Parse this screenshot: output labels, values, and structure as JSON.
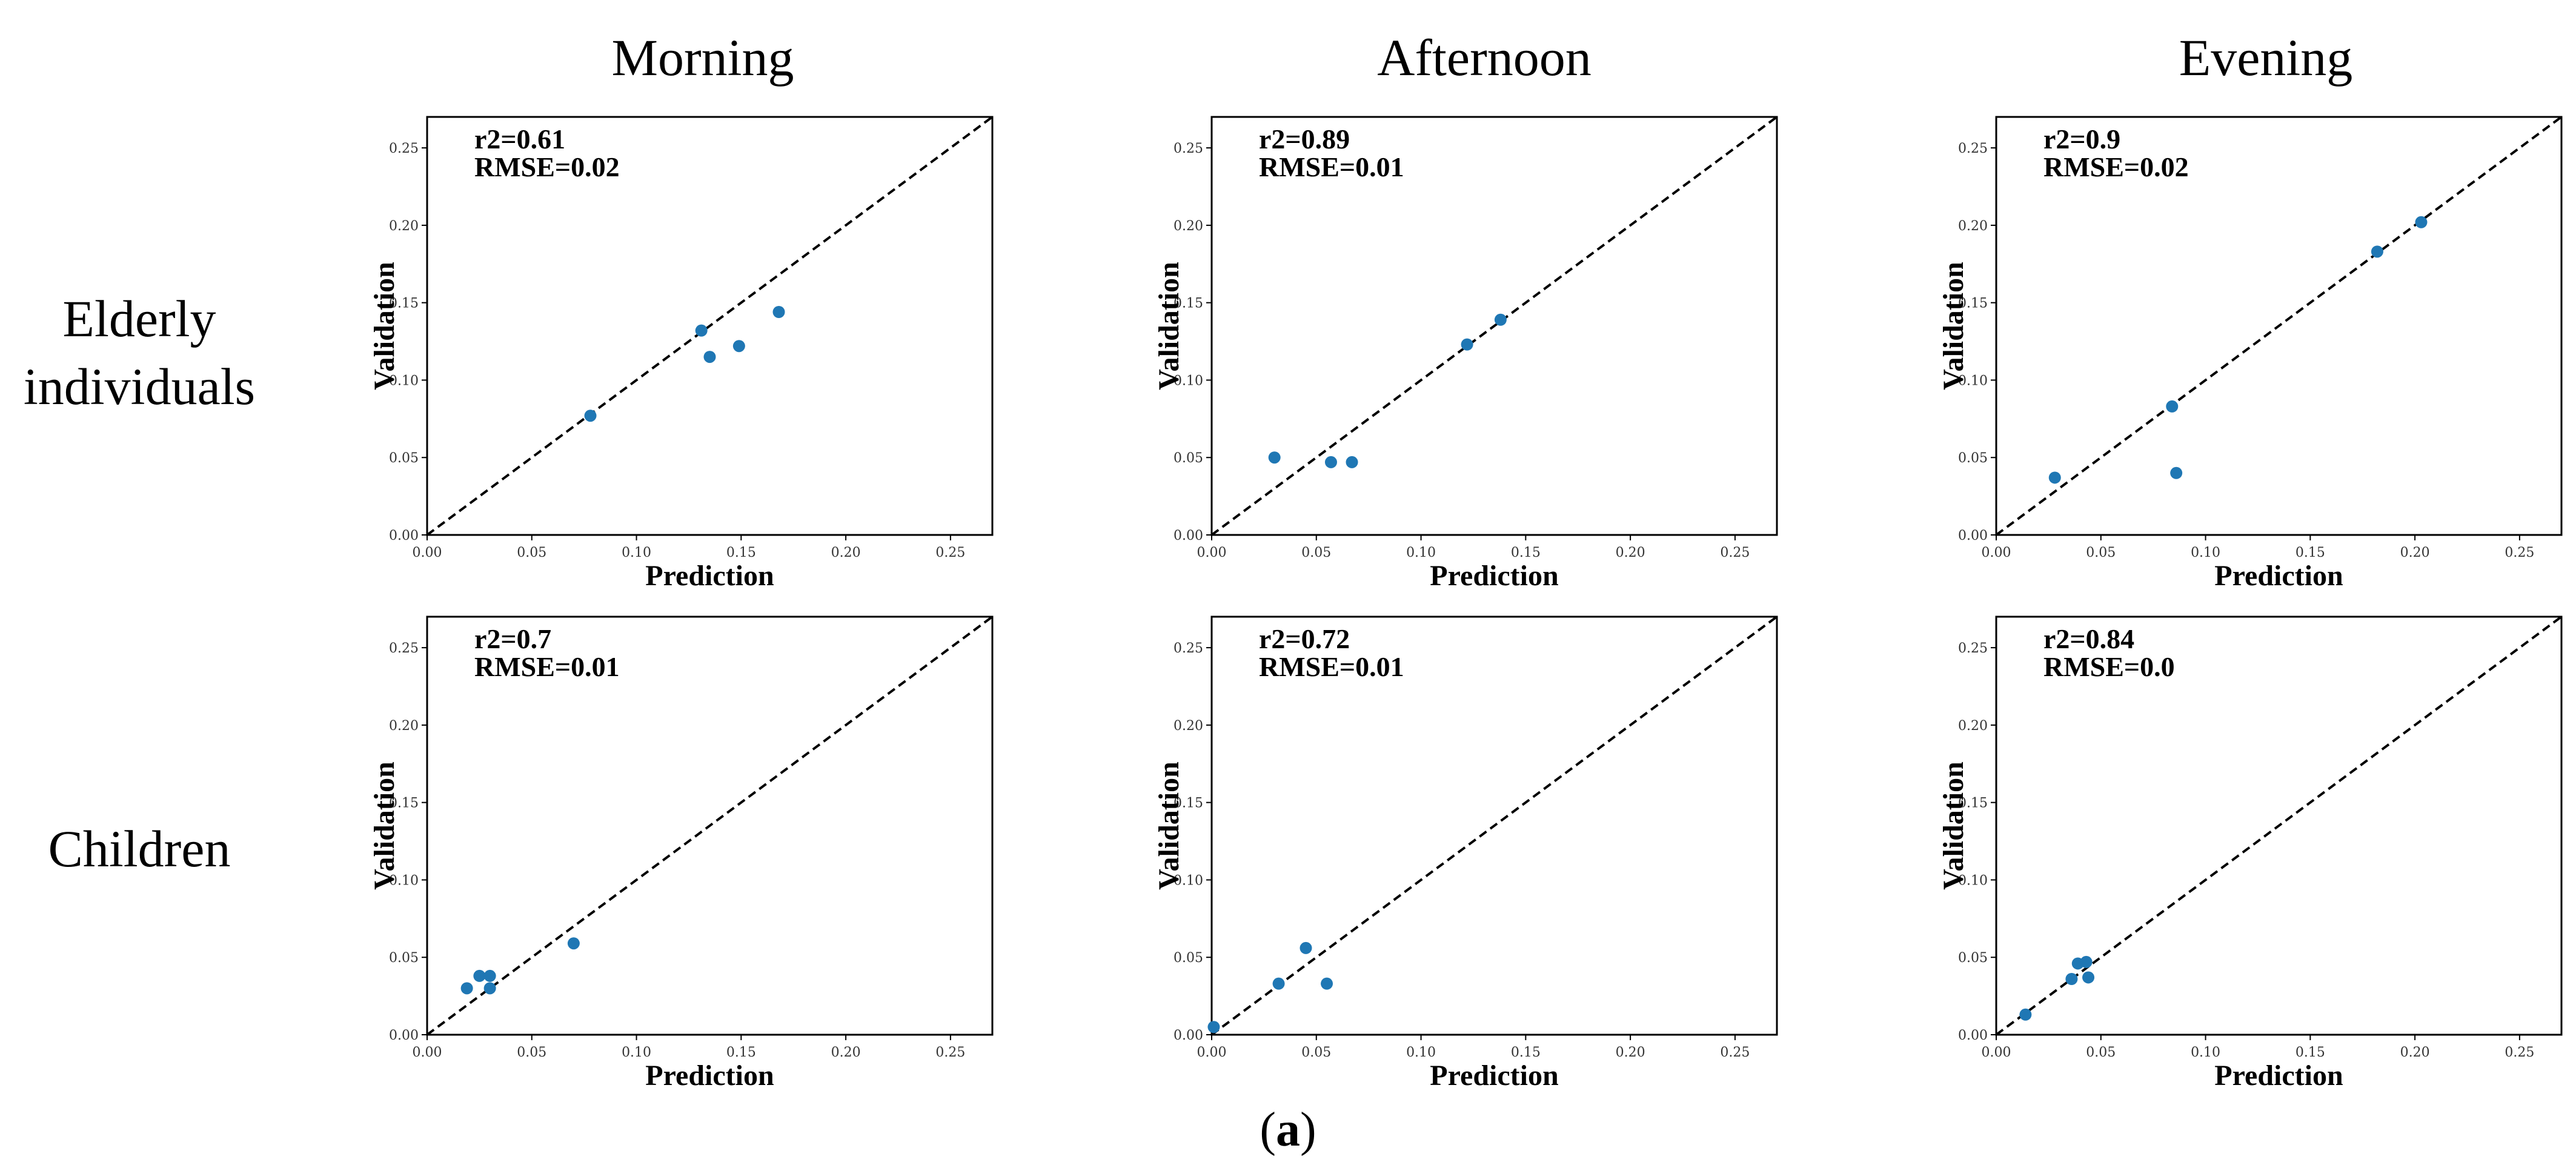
{
  "column_titles": [
    "Morning",
    "Afternoon",
    "Evening"
  ],
  "row_labels": [
    [
      "Elderly",
      "individuals"
    ],
    [
      "Children"
    ]
  ],
  "caption": {
    "open": "(",
    "letter": "a",
    "close": ")"
  },
  "colors": {
    "point": "#1f77b4",
    "line": "#000000",
    "axis": "#000000"
  },
  "chart_data": [
    {
      "type": "scatter",
      "row": "Elderly individuals",
      "column": "Morning",
      "annotation": [
        "r2=0.61",
        "RMSE=0.02"
      ],
      "xlabel": "Prediction",
      "ylabel": "Validation",
      "xlim": [
        0,
        0.27
      ],
      "ylim": [
        0,
        0.27
      ],
      "xticks": [
        0.0,
        0.05,
        0.1,
        0.15,
        0.2,
        0.25
      ],
      "yticks": [
        0.0,
        0.05,
        0.1,
        0.15,
        0.2,
        0.25
      ],
      "xtick_labels": [
        "0.00",
        "0.05",
        "0.10",
        "0.15",
        "0.20",
        "0.25"
      ],
      "ytick_labels": [
        "0.00",
        "0.05",
        "0.10",
        "0.15",
        "0.20",
        "0.25"
      ],
      "points": [
        [
          0.078,
          0.077
        ],
        [
          0.131,
          0.132
        ],
        [
          0.135,
          0.115
        ],
        [
          0.149,
          0.122
        ],
        [
          0.168,
          0.144
        ]
      ]
    },
    {
      "type": "scatter",
      "row": "Elderly individuals",
      "column": "Afternoon",
      "annotation": [
        "r2=0.89",
        "RMSE=0.01"
      ],
      "xlabel": "Prediction",
      "ylabel": "Validation",
      "xlim": [
        0,
        0.27
      ],
      "ylim": [
        0,
        0.27
      ],
      "xticks": [
        0.0,
        0.05,
        0.1,
        0.15,
        0.2,
        0.25
      ],
      "yticks": [
        0.0,
        0.05,
        0.1,
        0.15,
        0.2,
        0.25
      ],
      "xtick_labels": [
        "0.00",
        "0.05",
        "0.10",
        "0.15",
        "0.20",
        "0.25"
      ],
      "ytick_labels": [
        "0.00",
        "0.05",
        "0.10",
        "0.15",
        "0.20",
        "0.25"
      ],
      "points": [
        [
          0.03,
          0.05
        ],
        [
          0.057,
          0.047
        ],
        [
          0.067,
          0.047
        ],
        [
          0.122,
          0.123
        ],
        [
          0.138,
          0.139
        ]
      ]
    },
    {
      "type": "scatter",
      "row": "Elderly individuals",
      "column": "Evening",
      "annotation": [
        "r2=0.9",
        "RMSE=0.02"
      ],
      "xlabel": "Prediction",
      "ylabel": "Validation",
      "xlim": [
        0,
        0.27
      ],
      "ylim": [
        0,
        0.27
      ],
      "xticks": [
        0.0,
        0.05,
        0.1,
        0.15,
        0.2,
        0.25
      ],
      "yticks": [
        0.0,
        0.05,
        0.1,
        0.15,
        0.2,
        0.25
      ],
      "xtick_labels": [
        "0.00",
        "0.05",
        "0.10",
        "0.15",
        "0.20",
        "0.25"
      ],
      "ytick_labels": [
        "0.00",
        "0.05",
        "0.10",
        "0.15",
        "0.20",
        "0.25"
      ],
      "points": [
        [
          0.028,
          0.037
        ],
        [
          0.084,
          0.083
        ],
        [
          0.086,
          0.04
        ],
        [
          0.182,
          0.183
        ],
        [
          0.203,
          0.202
        ]
      ]
    },
    {
      "type": "scatter",
      "row": "Children",
      "column": "Morning",
      "annotation": [
        "r2=0.7",
        "RMSE=0.01"
      ],
      "xlabel": "Prediction",
      "ylabel": "Validation",
      "xlim": [
        0,
        0.27
      ],
      "ylim": [
        0,
        0.27
      ],
      "xticks": [
        0.0,
        0.05,
        0.1,
        0.15,
        0.2,
        0.25
      ],
      "yticks": [
        0.0,
        0.05,
        0.1,
        0.15,
        0.2,
        0.25
      ],
      "xtick_labels": [
        "0.00",
        "0.05",
        "0.10",
        "0.15",
        "0.20",
        "0.25"
      ],
      "ytick_labels": [
        "0.00",
        "0.05",
        "0.10",
        "0.15",
        "0.20",
        "0.25"
      ],
      "points": [
        [
          0.019,
          0.03
        ],
        [
          0.025,
          0.038
        ],
        [
          0.03,
          0.038
        ],
        [
          0.03,
          0.03
        ],
        [
          0.07,
          0.059
        ]
      ]
    },
    {
      "type": "scatter",
      "row": "Children",
      "column": "Afternoon",
      "annotation": [
        "r2=0.72",
        "RMSE=0.01"
      ],
      "xlabel": "Prediction",
      "ylabel": "Validation",
      "xlim": [
        0,
        0.27
      ],
      "ylim": [
        0,
        0.27
      ],
      "xticks": [
        0.0,
        0.05,
        0.1,
        0.15,
        0.2,
        0.25
      ],
      "yticks": [
        0.0,
        0.05,
        0.1,
        0.15,
        0.2,
        0.25
      ],
      "xtick_labels": [
        "0.00",
        "0.05",
        "0.10",
        "0.15",
        "0.20",
        "0.25"
      ],
      "ytick_labels": [
        "0.00",
        "0.05",
        "0.10",
        "0.15",
        "0.20",
        "0.25"
      ],
      "points": [
        [
          0.001,
          0.005
        ],
        [
          0.032,
          0.033
        ],
        [
          0.045,
          0.056
        ],
        [
          0.055,
          0.033
        ]
      ]
    },
    {
      "type": "scatter",
      "row": "Children",
      "column": "Evening",
      "annotation": [
        "r2=0.84",
        "RMSE=0.0"
      ],
      "xlabel": "Prediction",
      "ylabel": "Validation",
      "xlim": [
        0,
        0.27
      ],
      "ylim": [
        0,
        0.27
      ],
      "xticks": [
        0.0,
        0.05,
        0.1,
        0.15,
        0.2,
        0.25
      ],
      "yticks": [
        0.0,
        0.05,
        0.1,
        0.15,
        0.2,
        0.25
      ],
      "xtick_labels": [
        "0.00",
        "0.05",
        "0.10",
        "0.15",
        "0.20",
        "0.25"
      ],
      "ytick_labels": [
        "0.00",
        "0.05",
        "0.10",
        "0.15",
        "0.20",
        "0.25"
      ],
      "points": [
        [
          0.014,
          0.013
        ],
        [
          0.036,
          0.036
        ],
        [
          0.039,
          0.046
        ],
        [
          0.043,
          0.047
        ],
        [
          0.044,
          0.037
        ]
      ]
    }
  ]
}
